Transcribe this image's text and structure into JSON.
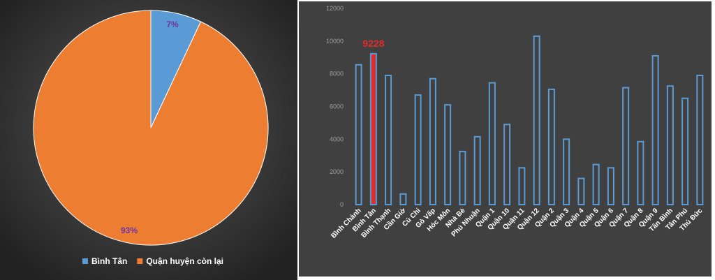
{
  "chart_data": [
    {
      "type": "pie",
      "slices": [
        {
          "label": "Bình Tân",
          "value": 7,
          "data_label": "7%",
          "color": "#5b9bd5"
        },
        {
          "label": "Quận huyện còn lại",
          "value": 93,
          "data_label": "93%",
          "color": "#ed7d31"
        }
      ],
      "legend": "bottom",
      "label_color": "#7030a0",
      "background": "#2b2b2b"
    },
    {
      "type": "bar",
      "categories": [
        "Bình Chánh",
        "Bình Tân",
        "Bình Thạnh",
        "Cần Giờ",
        "Củ Chi",
        "Gò Vấp",
        "Hóc Môn",
        "Nhà Bè",
        "Phú Nhuận",
        "Quận 1",
        "Quận 10",
        "Quận 11",
        "Quận 12",
        "Quận 2",
        "Quận 3",
        "Quận 4",
        "Quận 5",
        "Quận 6",
        "Quận 7",
        "Quận 8",
        "Quận 9",
        "Tân Bình",
        "Tân Phú",
        "Thủ Đức"
      ],
      "values": [
        8550,
        9228,
        7900,
        650,
        6700,
        7700,
        6100,
        3250,
        4150,
        7450,
        4900,
        2250,
        10300,
        7050,
        4000,
        1600,
        2450,
        2250,
        7150,
        3850,
        9100,
        7250,
        6500,
        7900
      ],
      "highlight": {
        "category": "Bình Tân",
        "label": "9228",
        "color": "#e02b2b"
      },
      "ylim": [
        0,
        12000
      ],
      "yticks": [
        0,
        2000,
        4000,
        6000,
        8000,
        10000,
        12000
      ],
      "grid": false,
      "bar_color": "#5b9bd5",
      "background": "#404040"
    }
  ]
}
